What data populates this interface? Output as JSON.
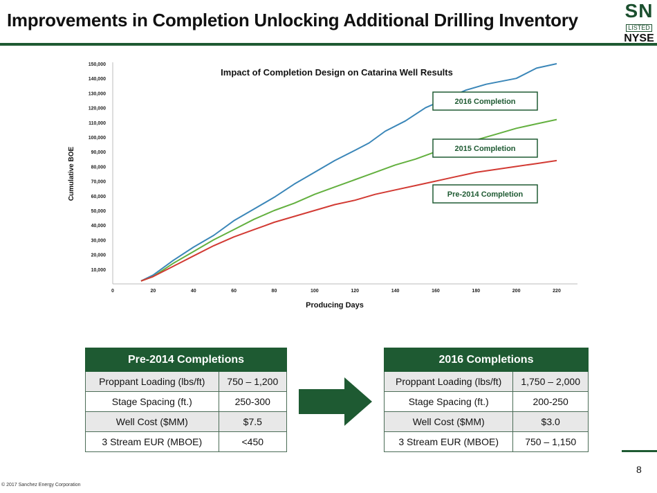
{
  "header": {
    "title": "Improvements in Completion Unlocking Additional Drilling Inventory",
    "logo": {
      "ticker": "SN",
      "listed": "LISTED",
      "exchange": "NYSE"
    }
  },
  "chart_data": {
    "type": "line",
    "title": "Impact of Completion Design on Catarina Well Results",
    "xlabel": "Producing Days",
    "ylabel": "Cumulative BOE",
    "xlim": [
      0,
      220
    ],
    "ylim": [
      0,
      150000
    ],
    "x_ticks": [
      "0",
      "20",
      "40",
      "60",
      "80",
      "100",
      "120",
      "140",
      "160",
      "180",
      "200",
      "220"
    ],
    "y_ticks": [
      "10,000",
      "20,000",
      "30,000",
      "40,000",
      "50,000",
      "60,000",
      "70,000",
      "80,000",
      "90,000",
      "100,000",
      "110,000",
      "120,000",
      "130,000",
      "140,000",
      "150,000"
    ],
    "grid": false,
    "series": [
      {
        "name": "2016 Completion",
        "color": "#3a86b8",
        "points": [
          [
            14,
            2000
          ],
          [
            20,
            6000
          ],
          [
            30,
            16000
          ],
          [
            40,
            25000
          ],
          [
            50,
            33000
          ],
          [
            60,
            43000
          ],
          [
            70,
            51000
          ],
          [
            80,
            59000
          ],
          [
            90,
            68000
          ],
          [
            100,
            76000
          ],
          [
            110,
            84000
          ],
          [
            120,
            91000
          ],
          [
            127,
            96000
          ],
          [
            135,
            104000
          ],
          [
            145,
            111000
          ],
          [
            155,
            120000
          ],
          [
            165,
            126000
          ],
          [
            175,
            132000
          ],
          [
            185,
            136000
          ],
          [
            200,
            140000
          ],
          [
            210,
            147000
          ],
          [
            220,
            150000
          ]
        ]
      },
      {
        "name": "2015 Completion",
        "color": "#63b03f",
        "points": [
          [
            14,
            2000
          ],
          [
            20,
            5000
          ],
          [
            30,
            14000
          ],
          [
            40,
            22000
          ],
          [
            50,
            30000
          ],
          [
            60,
            37000
          ],
          [
            70,
            44000
          ],
          [
            80,
            50000
          ],
          [
            90,
            55000
          ],
          [
            100,
            61000
          ],
          [
            110,
            66000
          ],
          [
            120,
            71000
          ],
          [
            130,
            76000
          ],
          [
            140,
            81000
          ],
          [
            150,
            85000
          ],
          [
            160,
            90000
          ],
          [
            170,
            94000
          ],
          [
            180,
            98000
          ],
          [
            190,
            102000
          ],
          [
            200,
            106000
          ],
          [
            210,
            109000
          ],
          [
            220,
            112000
          ]
        ]
      },
      {
        "name": "Pre-2014 Completion",
        "color": "#d23a33",
        "points": [
          [
            14,
            2000
          ],
          [
            20,
            5000
          ],
          [
            30,
            12000
          ],
          [
            40,
            19000
          ],
          [
            50,
            26000
          ],
          [
            60,
            32000
          ],
          [
            70,
            37000
          ],
          [
            80,
            42000
          ],
          [
            90,
            46000
          ],
          [
            100,
            50000
          ],
          [
            110,
            54000
          ],
          [
            120,
            57000
          ],
          [
            130,
            61000
          ],
          [
            140,
            64000
          ],
          [
            150,
            67000
          ],
          [
            160,
            70000
          ],
          [
            170,
            73000
          ],
          [
            180,
            76000
          ],
          [
            190,
            78000
          ],
          [
            200,
            80000
          ],
          [
            210,
            82000
          ],
          [
            220,
            84000
          ]
        ]
      }
    ],
    "annotations": [
      "2016 Completion",
      "2015 Completion",
      "Pre-2014 Completion"
    ]
  },
  "table_left": {
    "header": "Pre-2014 Completions",
    "rows": [
      [
        "Proppant  Loading (lbs/ft)",
        "750 – 1,200"
      ],
      [
        "Stage Spacing (ft.)",
        "250-300"
      ],
      [
        "Well Cost ($MM)",
        "$7.5"
      ],
      [
        "3 Stream EUR (MBOE)",
        "<450"
      ]
    ]
  },
  "table_right": {
    "header": "2016 Completions",
    "rows": [
      [
        "Proppant  Loading (lbs/ft)",
        "1,750 – 2,000"
      ],
      [
        "Stage Spacing (ft.)",
        "200-250"
      ],
      [
        "Well Cost ($MM)",
        "$3.0"
      ],
      [
        "3 Stream EUR (MBOE)",
        "750 – 1,150"
      ]
    ]
  },
  "arrow_icon": "right-arrow-icon",
  "page_number": "8",
  "footer": "© 2017 Sanchez Energy Corporation",
  "colors": {
    "brand_green": "#1e5a32",
    "row_alt": "#e8e8e8"
  }
}
